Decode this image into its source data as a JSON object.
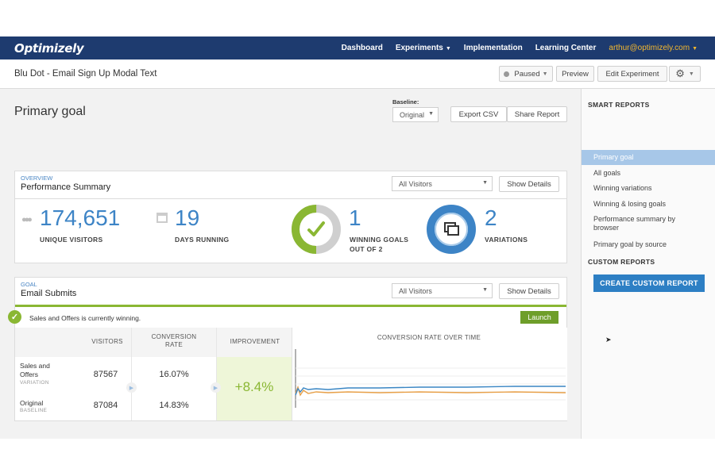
{
  "nav": {
    "logo": "Optimizely",
    "links": [
      "Dashboard",
      "Experiments",
      "Implementation",
      "Learning Center"
    ],
    "user": "arthur@optimizely.com"
  },
  "subheader": {
    "experiment_title": "Blu Dot - Email Sign Up Modal Text",
    "status": "Paused",
    "preview": "Preview",
    "edit": "Edit Experiment"
  },
  "main": {
    "title": "Primary goal",
    "baseline_label": "Baseline:",
    "baseline_value": "Original",
    "export_csv": "Export CSV",
    "share_report": "Share Report"
  },
  "overview": {
    "eyebrow": "OVERVIEW",
    "title": "Performance Summary",
    "audience": "All Visitors",
    "show_details": "Show Details",
    "unique_visitors": "174,651",
    "unique_visitors_label": "UNIQUE VISITORS",
    "days_running": "19",
    "days_running_label": "DAYS RUNNING",
    "winning_goals": "1",
    "winning_goals_label_1": "WINNING GOALS",
    "winning_goals_label_2": "OUT OF 2",
    "winning_goals_fraction": 0.5,
    "variations": "2",
    "variations_label": "VARIATIONS"
  },
  "goal": {
    "eyebrow": "GOAL",
    "title": "Email Submits",
    "audience": "All Visitors",
    "show_details": "Show Details",
    "winning_text": "Sales and Offers is currently winning.",
    "launch": "Launch",
    "columns": {
      "visitors": "VISITORS",
      "conversion_1": "CONVERSION",
      "conversion_2": "RATE",
      "improvement": "IMPROVEMENT",
      "over_time": "CONVERSION RATE OVER TIME"
    },
    "rows": [
      {
        "name_1": "Sales and",
        "name_2": "Offers",
        "tag": "VARIATION",
        "visitors": "87567",
        "rate": "16.07%"
      },
      {
        "name_1": "Original",
        "name_2": "",
        "tag": "BASELINE",
        "visitors": "87084",
        "rate": "14.83%"
      }
    ],
    "improvement": "+8.4%"
  },
  "sidebar": {
    "smart_reports": "SMART REPORTS",
    "items": [
      "Primary goal",
      "All goals",
      "Winning variations",
      "Winning & losing goals",
      "Performance summary by browser",
      "Primary goal by source"
    ],
    "custom_reports": "CUSTOM REPORTS",
    "create": "CREATE CUSTOM REPORT"
  },
  "colors": {
    "nav": "#1e3b6f",
    "accent_blue": "#3d84c6",
    "green": "#8ab733",
    "variation_line": "#3a86c4",
    "baseline_line": "#e8a14a"
  }
}
